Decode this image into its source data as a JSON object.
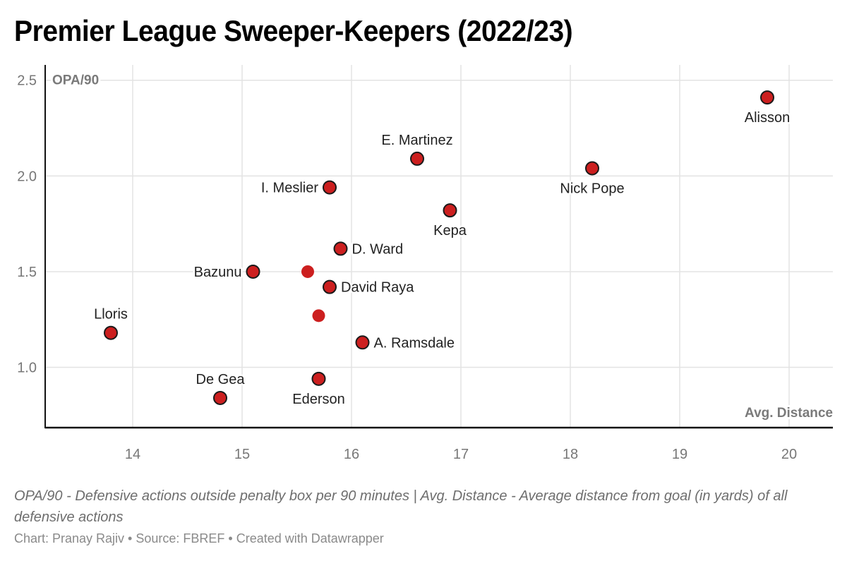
{
  "title": "Premier League Sweeper-Keepers (2022/23)",
  "notes": "OPA/90 - Defensive actions outside penalty box per 90 minutes | Avg. Distance - Average distance from goal (in yards) of all defensive actions",
  "credit": "Chart: Pranay Rajiv • Source: FBREF • Created with Datawrapper",
  "colors": {
    "point": "#cc1f1f",
    "outline": "#1a1a1a",
    "grid": "#e3e3e3",
    "axis": "#111111"
  },
  "chart_data": {
    "type": "scatter",
    "title": "Premier League Sweeper-Keepers (2022/23)",
    "xlabel": "Avg. Distance",
    "ylabel": "OPA/90",
    "xlim": [
      13.2,
      20.4
    ],
    "ylim": [
      0.685,
      2.58
    ],
    "xticks": [
      "14",
      "15",
      "16",
      "17",
      "18",
      "19",
      "20"
    ],
    "xtick_values": [
      14,
      15,
      16,
      17,
      18,
      19,
      20
    ],
    "yticks": [
      "1.0",
      "1.5",
      "2.0",
      "2.5"
    ],
    "ytick_values": [
      1.0,
      1.5,
      2.0,
      2.5
    ],
    "grid": true,
    "points": [
      {
        "label": "Alisson",
        "x": 19.8,
        "y": 2.41,
        "label_pos": "below",
        "outlined": true
      },
      {
        "label": "Nick Pope",
        "x": 18.2,
        "y": 2.04,
        "label_pos": "below",
        "outlined": true
      },
      {
        "label": "E. Martinez",
        "x": 16.6,
        "y": 2.09,
        "label_pos": "above",
        "outlined": true
      },
      {
        "label": "I. Meslier",
        "x": 15.8,
        "y": 1.94,
        "label_pos": "left",
        "outlined": true
      },
      {
        "label": "Kepa",
        "x": 16.9,
        "y": 1.82,
        "label_pos": "below",
        "outlined": true
      },
      {
        "label": "D. Ward",
        "x": 15.9,
        "y": 1.62,
        "label_pos": "right",
        "outlined": true
      },
      {
        "label": "Bazunu",
        "x": 15.1,
        "y": 1.5,
        "label_pos": "left",
        "outlined": true
      },
      {
        "label": "",
        "x": 15.6,
        "y": 1.5,
        "label_pos": "none",
        "outlined": false
      },
      {
        "label": "David Raya",
        "x": 15.8,
        "y": 1.42,
        "label_pos": "right",
        "outlined": true
      },
      {
        "label": "",
        "x": 15.7,
        "y": 1.27,
        "label_pos": "none",
        "outlined": false
      },
      {
        "label": "A. Ramsdale",
        "x": 16.1,
        "y": 1.13,
        "label_pos": "right",
        "outlined": true
      },
      {
        "label": "Lloris",
        "x": 13.8,
        "y": 1.18,
        "label_pos": "above",
        "outlined": true
      },
      {
        "label": "Ederson",
        "x": 15.7,
        "y": 0.94,
        "label_pos": "below",
        "outlined": true
      },
      {
        "label": "De Gea",
        "x": 14.8,
        "y": 0.84,
        "label_pos": "above",
        "outlined": true
      }
    ]
  }
}
